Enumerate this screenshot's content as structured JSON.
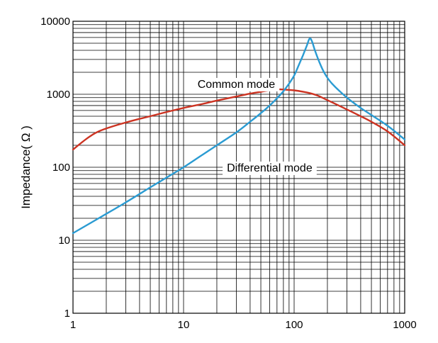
{
  "chart_data": {
    "type": "line",
    "title": "",
    "xlabel": "",
    "ylabel": "Impedance( Ω )",
    "xscale": "log",
    "yscale": "log",
    "xlim": [
      1,
      1000
    ],
    "ylim": [
      1,
      10000
    ],
    "grid": true,
    "x_ticks": [
      "1",
      "10",
      "100",
      "1000"
    ],
    "y_ticks": [
      "1",
      "10",
      "100",
      "1000",
      "10000"
    ],
    "series": [
      {
        "name": "Common mode",
        "color": "#cc3322",
        "points": [
          [
            1,
            175
          ],
          [
            1.3,
            240
          ],
          [
            1.6,
            295
          ],
          [
            2,
            340
          ],
          [
            3,
            410
          ],
          [
            4,
            460
          ],
          [
            5,
            500
          ],
          [
            7,
            570
          ],
          [
            10,
            650
          ],
          [
            15,
            740
          ],
          [
            20,
            820
          ],
          [
            30,
            930
          ],
          [
            40,
            1020
          ],
          [
            50,
            1080
          ],
          [
            60,
            1130
          ],
          [
            70,
            1170
          ],
          [
            80,
            1160
          ],
          [
            100,
            1130
          ],
          [
            130,
            1060
          ],
          [
            160,
            970
          ],
          [
            200,
            830
          ],
          [
            300,
            620
          ],
          [
            400,
            500
          ],
          [
            500,
            420
          ],
          [
            700,
            310
          ],
          [
            1000,
            200
          ]
        ]
      },
      {
        "name": "Differential mode",
        "color": "#2a9bd2",
        "points": [
          [
            1,
            12.5
          ],
          [
            2,
            23
          ],
          [
            3,
            33
          ],
          [
            5,
            53
          ],
          [
            7,
            72
          ],
          [
            10,
            100
          ],
          [
            15,
            150
          ],
          [
            20,
            200
          ],
          [
            30,
            300
          ],
          [
            40,
            420
          ],
          [
            50,
            550
          ],
          [
            60,
            700
          ],
          [
            70,
            880
          ],
          [
            80,
            1100
          ],
          [
            90,
            1400
          ],
          [
            100,
            1800
          ],
          [
            110,
            2500
          ],
          [
            120,
            3400
          ],
          [
            130,
            4600
          ],
          [
            138,
            5800
          ],
          [
            145,
            5300
          ],
          [
            155,
            3900
          ],
          [
            170,
            2700
          ],
          [
            190,
            1900
          ],
          [
            220,
            1400
          ],
          [
            300,
            900
          ],
          [
            400,
            650
          ],
          [
            500,
            520
          ],
          [
            700,
            370
          ],
          [
            1000,
            240
          ]
        ]
      }
    ],
    "annotations": [
      {
        "text": "Common mode",
        "x": 30,
        "y": 1400
      },
      {
        "text": "Differential mode",
        "x": 60,
        "y": 100
      }
    ]
  }
}
